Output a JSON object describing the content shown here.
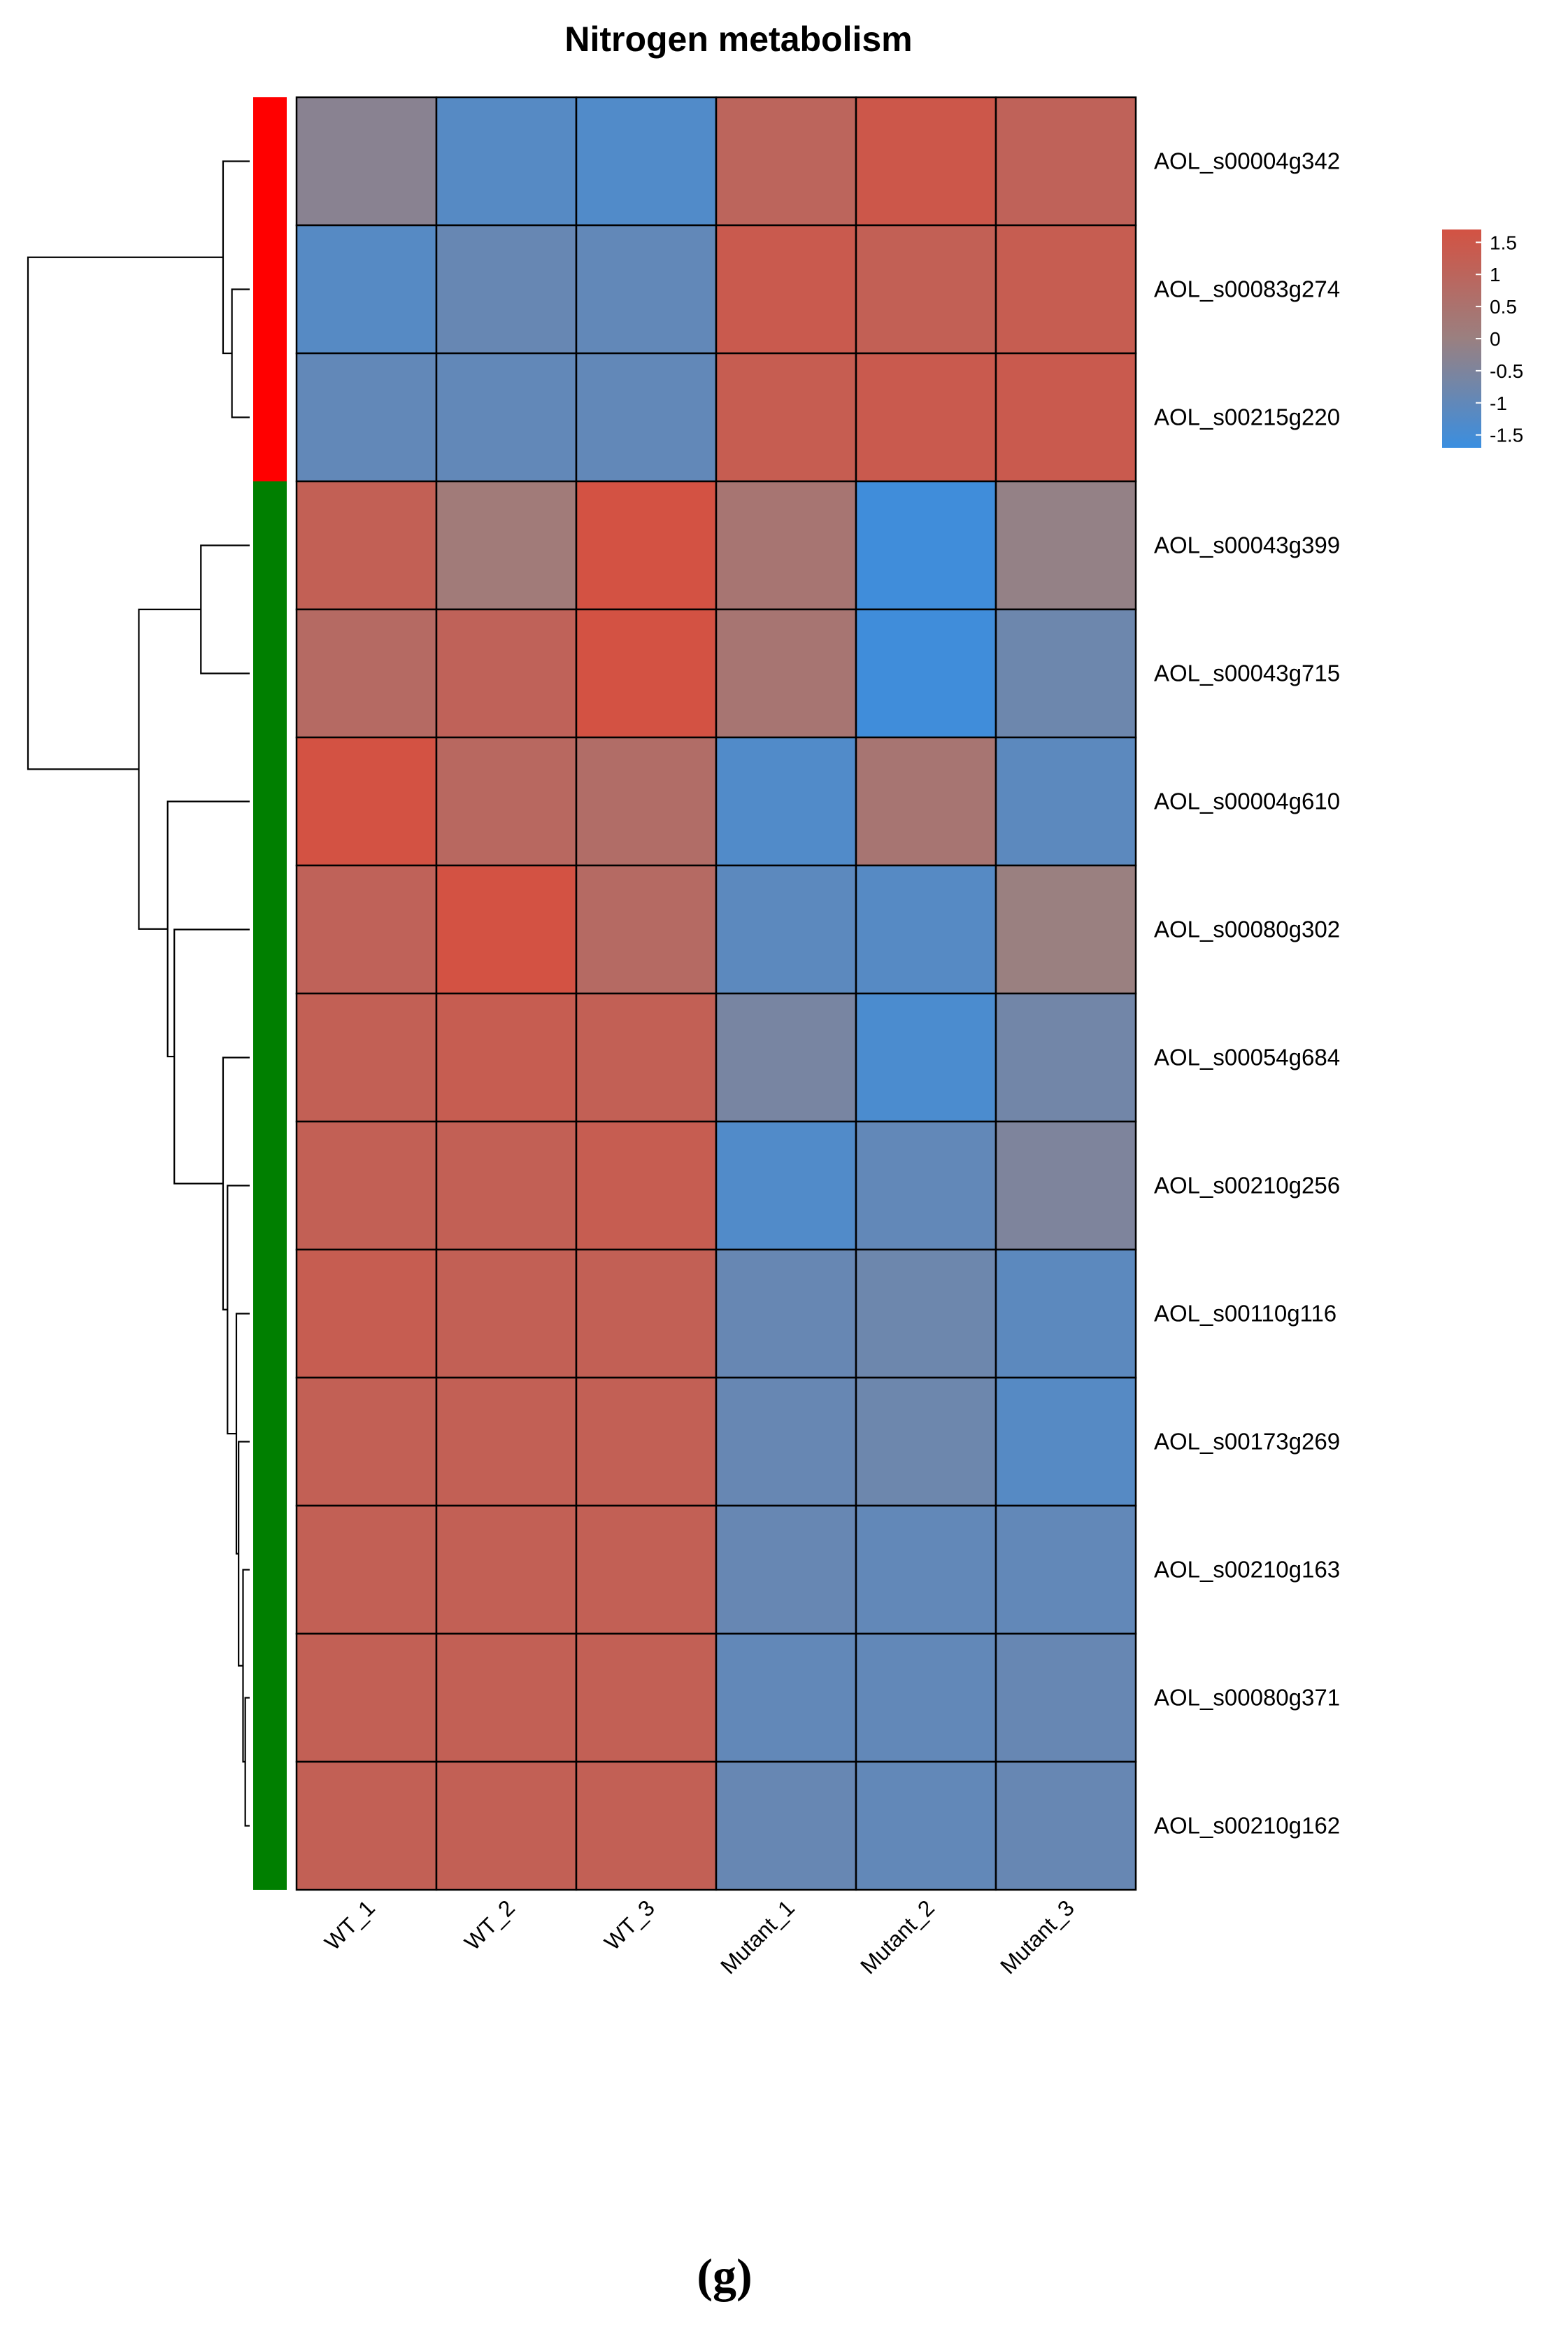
{
  "chart_data": {
    "type": "heatmap",
    "title": "Nitrogen metabolism",
    "columns": [
      "WT_1",
      "WT_2",
      "WT_3",
      "Mutant_1",
      "Mutant_2",
      "Mutant_3"
    ],
    "rows": [
      "AOL_s00004g342",
      "AOL_s00083g274",
      "AOL_s00215g220",
      "AOL_s00043g399",
      "AOL_s00043g715",
      "AOL_s00004g610",
      "AOL_s00080g302",
      "AOL_s00054g684",
      "AOL_s00210g256",
      "AOL_s00110g116",
      "AOL_s00173g269",
      "AOL_s00210g163",
      "AOL_s00080g371",
      "AOL_s00210g162"
    ],
    "values": [
      [
        -0.3,
        -1.2,
        -1.3,
        1.0,
        1.5,
        1.1
      ],
      [
        -1.2,
        -0.9,
        -1.0,
        1.4,
        1.2,
        1.3
      ],
      [
        -1.0,
        -1.0,
        -1.0,
        1.3,
        1.4,
        1.4
      ],
      [
        1.2,
        0.2,
        1.7,
        0.4,
        -1.6,
        -0.1
      ],
      [
        0.8,
        1.1,
        1.7,
        0.4,
        -1.6,
        -0.8
      ],
      [
        1.7,
        0.9,
        0.7,
        -1.3,
        0.4,
        -1.1
      ],
      [
        1.1,
        1.7,
        0.8,
        -1.1,
        -1.2,
        0.0
      ],
      [
        1.2,
        1.3,
        1.2,
        -0.6,
        -1.4,
        -0.7
      ],
      [
        1.2,
        1.2,
        1.3,
        -1.3,
        -1.0,
        -0.5
      ],
      [
        1.3,
        1.2,
        1.2,
        -0.9,
        -0.8,
        -1.1
      ],
      [
        1.2,
        1.2,
        1.2,
        -0.9,
        -0.8,
        -1.2
      ],
      [
        1.2,
        1.2,
        1.2,
        -0.9,
        -1.0,
        -1.0
      ],
      [
        1.2,
        1.2,
        1.2,
        -1.0,
        -1.0,
        -0.9
      ],
      [
        1.2,
        1.2,
        1.2,
        -0.9,
        -1.0,
        -0.9
      ]
    ],
    "row_groups": [
      {
        "start": 0,
        "count": 3,
        "color": "#ff0000"
      },
      {
        "start": 3,
        "count": 11,
        "color": "#007f00"
      }
    ],
    "dendrogram": {
      "leaf_order": [
        0,
        1,
        2,
        3,
        4,
        5,
        6,
        7,
        8,
        9,
        10,
        11,
        12,
        13
      ],
      "merges": [
        [
          1,
          2,
          0.08
        ],
        [
          0,
          -1,
          0.12
        ],
        [
          12,
          13,
          0.02
        ],
        [
          11,
          -3,
          0.03
        ],
        [
          10,
          -4,
          0.05
        ],
        [
          9,
          -5,
          0.06
        ],
        [
          8,
          -6,
          0.1
        ],
        [
          7,
          -7,
          0.12
        ],
        [
          3,
          4,
          0.22
        ],
        [
          6,
          -8,
          0.34
        ],
        [
          5,
          -10,
          0.37
        ],
        [
          -9,
          -11,
          0.5
        ],
        [
          -2,
          -12,
          1.0
        ]
      ]
    },
    "color_scale": {
      "low": "#3a8ee0",
      "mid": "#9a8080",
      "high": "#d35243",
      "min": -1.7,
      "max": 1.7
    },
    "legend": {
      "ticks": [
        1.5,
        1,
        0.5,
        0,
        -0.5,
        -1,
        -1.5
      ],
      "tick_labels": [
        "1.5",
        "1",
        "0.5",
        "0",
        "-0.5",
        "-1",
        "-1.5"
      ],
      "position": "top-right"
    },
    "xlabel": "",
    "ylabel": ""
  },
  "panel_label": "(g)"
}
